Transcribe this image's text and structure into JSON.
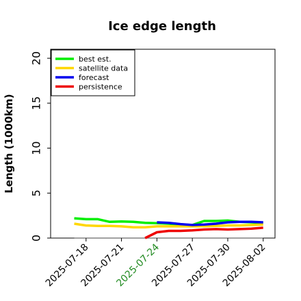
{
  "chart_data": {
    "type": "line",
    "title": "Ice edge length",
    "xlabel": "",
    "ylabel": "Length (1000km)",
    "ylim": [
      0,
      21
    ],
    "xlim": [
      "2025-07-15",
      "2025-08-03"
    ],
    "yticks": [
      0,
      5,
      10,
      15,
      20
    ],
    "ytick_labels": [
      "0",
      "5",
      "10",
      "15",
      "20"
    ],
    "xticks": [
      "2025-07-18",
      "2025-07-21",
      "2025-07-24",
      "2025-07-27",
      "2025-07-30",
      "2025-08-02"
    ],
    "xtick_labels": [
      "2025-07-18",
      "2025-07-21",
      "2025-07-24",
      "2025-07-27",
      "2025-07-30",
      "2025-08-02"
    ],
    "highlighted_xtick": "2025-07-24",
    "grid": false,
    "legend": "top-left",
    "colors": {
      "highlight_tick": "#228b22",
      "tick": "#000000",
      "baseline": "#808080"
    },
    "baseline": {
      "y": 0,
      "x": [
        "2025-07-17",
        "2025-08-02"
      ]
    },
    "series": [
      {
        "name": "best est.",
        "color": "#00ee00",
        "points": [
          [
            "2025-07-17",
            2.2
          ],
          [
            "2025-07-18",
            2.1
          ],
          [
            "2025-07-19",
            2.1
          ],
          [
            "2025-07-20",
            1.8
          ],
          [
            "2025-07-21",
            1.85
          ],
          [
            "2025-07-22",
            1.8
          ],
          [
            "2025-07-23",
            1.7
          ],
          [
            "2025-07-24",
            1.65
          ],
          [
            "2025-07-25",
            1.6
          ],
          [
            "2025-07-26",
            1.5
          ],
          [
            "2025-07-27",
            1.45
          ],
          [
            "2025-07-28",
            1.9
          ],
          [
            "2025-07-29",
            1.9
          ],
          [
            "2025-07-30",
            1.95
          ],
          [
            "2025-07-31",
            1.8
          ],
          [
            "2025-08-01",
            1.75
          ],
          [
            "2025-08-02",
            1.7
          ]
        ]
      },
      {
        "name": "satellite data",
        "color": "#ffd700",
        "points": [
          [
            "2025-07-17",
            1.6
          ],
          [
            "2025-07-18",
            1.4
          ],
          [
            "2025-07-19",
            1.35
          ],
          [
            "2025-07-20",
            1.35
          ],
          [
            "2025-07-21",
            1.3
          ],
          [
            "2025-07-22",
            1.2
          ],
          [
            "2025-07-23",
            1.2
          ],
          [
            "2025-07-24",
            1.3
          ],
          [
            "2025-07-25",
            1.3
          ],
          [
            "2025-07-26",
            1.3
          ],
          [
            "2025-07-27",
            1.3
          ],
          [
            "2025-07-28",
            1.3
          ],
          [
            "2025-07-29",
            1.35
          ],
          [
            "2025-07-30",
            1.4
          ],
          [
            "2025-07-31",
            1.4
          ],
          [
            "2025-08-01",
            1.45
          ],
          [
            "2025-08-02",
            1.5
          ]
        ]
      },
      {
        "name": "forecast",
        "color": "#0000ee",
        "points": [
          [
            "2025-07-24",
            1.75
          ],
          [
            "2025-07-25",
            1.7
          ],
          [
            "2025-07-26",
            1.55
          ],
          [
            "2025-07-27",
            1.45
          ],
          [
            "2025-07-28",
            1.5
          ],
          [
            "2025-07-29",
            1.6
          ],
          [
            "2025-07-30",
            1.75
          ],
          [
            "2025-07-31",
            1.8
          ],
          [
            "2025-08-01",
            1.8
          ],
          [
            "2025-08-02",
            1.75
          ]
        ]
      },
      {
        "name": "persistence",
        "color": "#ee0000",
        "points": [
          [
            "2025-07-23",
            0.0
          ],
          [
            "2025-07-24",
            0.65
          ],
          [
            "2025-07-25",
            0.8
          ],
          [
            "2025-07-26",
            0.8
          ],
          [
            "2025-07-27",
            0.85
          ],
          [
            "2025-07-28",
            0.95
          ],
          [
            "2025-07-29",
            1.0
          ],
          [
            "2025-07-30",
            0.95
          ],
          [
            "2025-07-31",
            1.0
          ],
          [
            "2025-08-01",
            1.05
          ],
          [
            "2025-08-02",
            1.15
          ]
        ]
      }
    ]
  }
}
